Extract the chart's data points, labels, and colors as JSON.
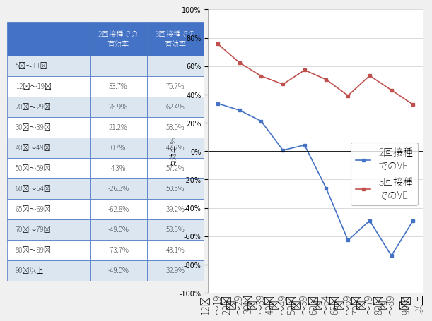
{
  "age_groups": [
    "5歳〜11歳",
    "12歳〜19歳",
    "20歳〜29歳",
    "30歳〜39歳",
    "40歳〜49歳",
    "50歳〜59歳",
    "60歳〜64歳",
    "65歳〜69歳",
    "70歳〜79歳",
    "80歳〜89歳",
    "90歳以上"
  ],
  "ve2_str": [
    "",
    "33.7%",
    "28.9%",
    "21.2%",
    "0.7%",
    "4.3%",
    "-26.3%",
    "-62.8%",
    "-49.0%",
    "-73.7%",
    "-49.0%"
  ],
  "ve3_str": [
    "",
    "75.7%",
    "62.4%",
    "53.0%",
    "47.2%",
    "57.2%",
    "50.5%",
    "39.2%",
    "53.3%",
    "43.1%",
    "32.9%"
  ],
  "chart_age_groups": [
    "12歳\n〜19\n歳",
    "20歳\n〜29\n歳",
    "30歳\n〜39\n歳",
    "40歳\n〜49\n歳",
    "50歳\n〜59\n歳",
    "60歳\n〜64\n歳",
    "65歳\n〜69\n歳",
    "70歳\n〜79\n歳",
    "80歳\n〜89\n歳",
    "90歳\n以上"
  ],
  "chart_ve2": [
    33.7,
    28.9,
    21.2,
    0.7,
    4.3,
    -26.3,
    -62.8,
    -49.0,
    -73.7,
    -49.0
  ],
  "chart_ve3": [
    75.7,
    62.4,
    53.0,
    47.2,
    57.2,
    50.5,
    39.2,
    53.3,
    43.1,
    32.9
  ],
  "header_bg": "#4472c4",
  "header_text": "#ffffff",
  "row_bg_odd": "#dce6f1",
  "row_bg_even": "#ffffff",
  "row_text": "#000000",
  "table_border": "#4472c4",
  "line_color_2": "#4472c4",
  "line_color_3": "#c0504d",
  "ylim": [
    -100,
    100
  ],
  "yticks": [
    -100,
    -80,
    -60,
    -40,
    -20,
    0,
    20,
    40,
    60,
    80,
    100
  ],
  "ylabel": "有効率,%",
  "legend_2": "2回接種\nでのVE",
  "legend_3": "3回接種\nでのVE",
  "col_header_0": "",
  "col_header_1": "2回接種での\n有効率",
  "col_header_2": "3回接種での\n有効率",
  "background_color": "#f0f0f0"
}
